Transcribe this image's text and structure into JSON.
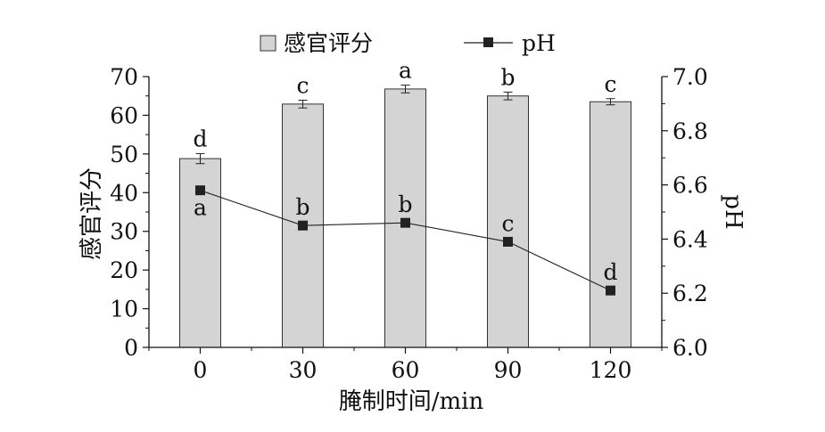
{
  "chart_data": {
    "type": "bar+line",
    "categories": [
      "0",
      "30",
      "60",
      "90",
      "120"
    ],
    "xlabel": "腌制时间/min",
    "ylabel_left": "感官评分",
    "ylabel_right": "pH",
    "ylim_left": [
      0,
      70
    ],
    "ylim_right": [
      6.0,
      7.0
    ],
    "yticks_left": [
      "0",
      "10",
      "20",
      "30",
      "40",
      "50",
      "60",
      "70"
    ],
    "yticks_right": [
      "6.0",
      "6.2",
      "6.4",
      "6.6",
      "6.8",
      "7.0"
    ],
    "grid": false,
    "legend_placement": "top-center",
    "series": [
      {
        "name": "感官评分",
        "kind": "bar",
        "axis": "left",
        "values": [
          48.8,
          62.9,
          66.8,
          65.0,
          63.5
        ],
        "errors": [
          1.3,
          1.0,
          1.0,
          1.0,
          0.8
        ],
        "labels": [
          "d",
          "c",
          "a",
          "b",
          "c"
        ],
        "color": "#d4d4d4"
      },
      {
        "name": "pH",
        "kind": "line",
        "axis": "right",
        "values": [
          6.58,
          6.45,
          6.46,
          6.39,
          6.21
        ],
        "errors": [
          0.01,
          0.01,
          0.01,
          0.01,
          0.01
        ],
        "labels": [
          "a",
          "b",
          "b",
          "c",
          "d"
        ],
        "color": "#222222"
      }
    ]
  }
}
